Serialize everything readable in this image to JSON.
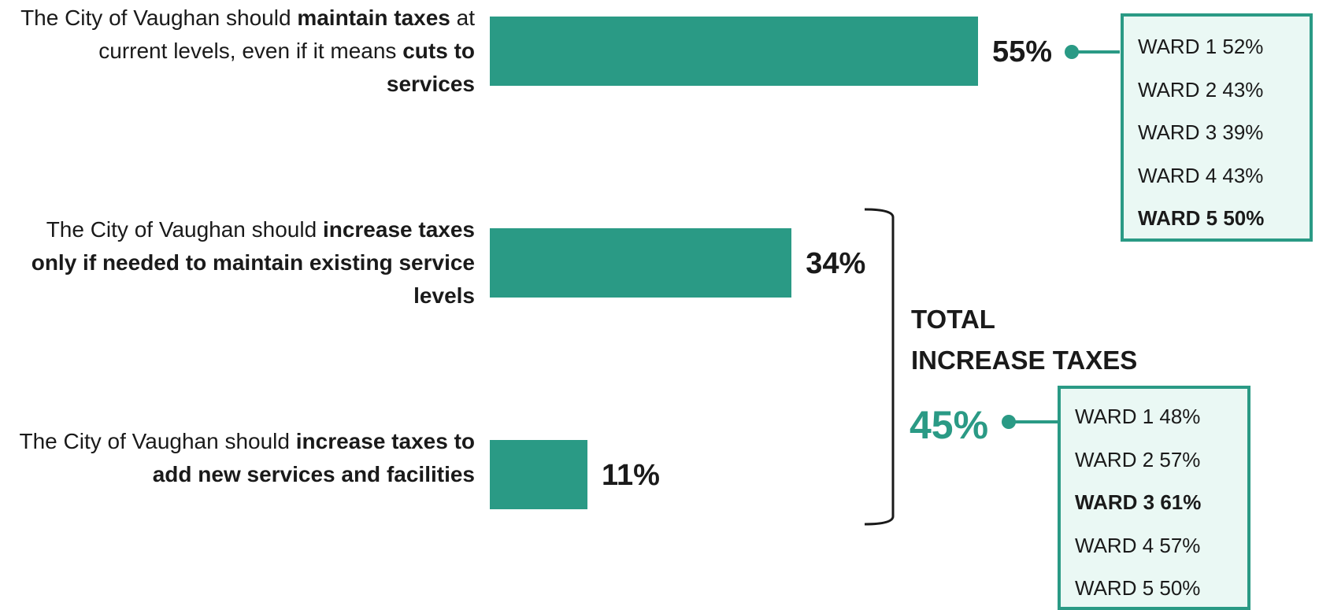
{
  "accent_color": "#2a9a85",
  "chart_data": {
    "type": "bar",
    "orientation": "horizontal",
    "xlim": [
      0,
      100
    ],
    "bars": [
      {
        "label_parts": [
          {
            "text": "The City of Vaughan should ",
            "bold": false
          },
          {
            "text": "maintain taxes",
            "bold": true
          },
          {
            "text": " at current levels, even if it means ",
            "bold": false
          },
          {
            "text": "cuts to services",
            "bold": true
          }
        ],
        "value": 55,
        "value_label": "55%"
      },
      {
        "label_parts": [
          {
            "text": "The City of Vaughan should ",
            "bold": false
          },
          {
            "text": "increase taxes only if needed to maintain existing service levels",
            "bold": true
          }
        ],
        "value": 34,
        "value_label": "34%"
      },
      {
        "label_parts": [
          {
            "text": "The City of Vaughan should ",
            "bold": false
          },
          {
            "text": "increase taxes to add new services and facilities",
            "bold": true
          }
        ],
        "value": 11,
        "value_label": "11%"
      }
    ],
    "total": {
      "label_line1": "TOTAL",
      "label_line2": "INCREASE TAXES",
      "value": 45,
      "value_label": "45%"
    },
    "ward_breakdowns": [
      {
        "applies_to": "maintain taxes",
        "wards": [
          {
            "label": "WARD 1 52%",
            "value": 52,
            "bold": false
          },
          {
            "label": "WARD 2 43%",
            "value": 43,
            "bold": false
          },
          {
            "label": "WARD 3 39%",
            "value": 39,
            "bold": false
          },
          {
            "label": "WARD 4 43%",
            "value": 43,
            "bold": false
          },
          {
            "label": "WARD 5 50%",
            "value": 50,
            "bold": true
          }
        ]
      },
      {
        "applies_to": "total increase taxes",
        "wards": [
          {
            "label": "WARD 1 48%",
            "value": 48,
            "bold": false
          },
          {
            "label": "WARD 2 57%",
            "value": 57,
            "bold": false
          },
          {
            "label": "WARD 3 61%",
            "value": 61,
            "bold": true
          },
          {
            "label": "WARD 4 57%",
            "value": 57,
            "bold": false
          },
          {
            "label": "WARD 5 50%",
            "value": 50,
            "bold": false
          }
        ]
      }
    ]
  }
}
